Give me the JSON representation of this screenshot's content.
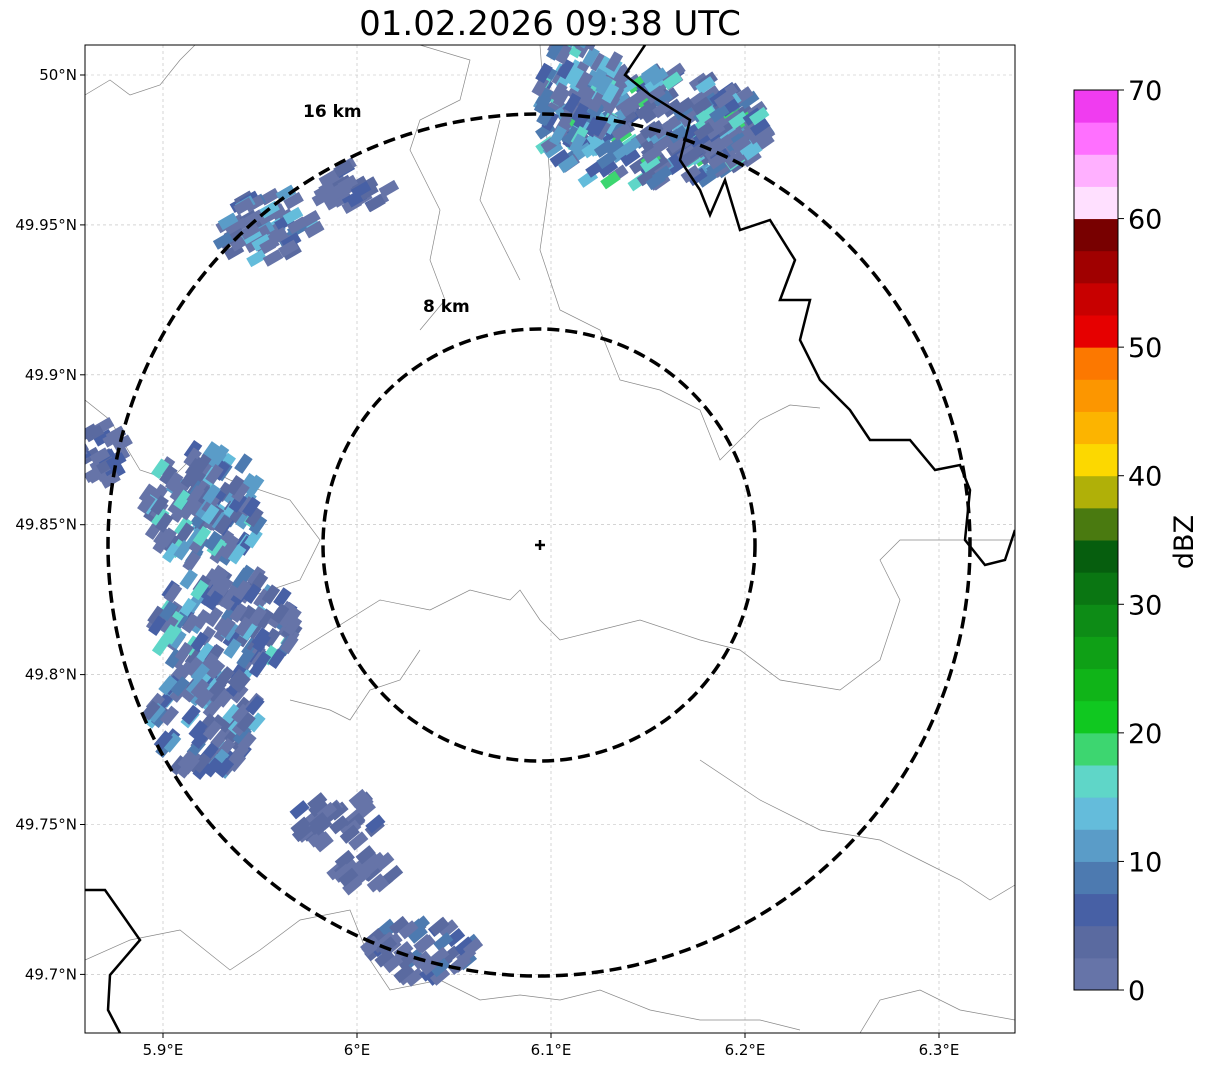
{
  "title": "01.02.2026 09:38 UTC",
  "chart_data": {
    "type": "heatmap",
    "title": "01.02.2026 09:38 UTC",
    "x_ticks": [
      "5.9°E",
      "6°E",
      "6.1°E",
      "6.2°E",
      "6.3°E"
    ],
    "x_tick_values": [
      5.9,
      6.0,
      6.1,
      6.2,
      6.3
    ],
    "y_ticks": [
      "50°N",
      "49.95°N",
      "49.9°N",
      "49.85°N",
      "49.8°N",
      "49.75°N",
      "49.7°N"
    ],
    "y_tick_values": [
      50.0,
      49.95,
      49.9,
      49.85,
      49.8,
      49.75,
      49.7
    ],
    "xlim": [
      5.86,
      6.34
    ],
    "ylim": [
      49.68,
      50.01
    ],
    "grid": true,
    "radar_center": {
      "lon": 6.095,
      "lat": 49.843
    },
    "range_rings": [
      {
        "radius_km": 8,
        "label": "8 km"
      },
      {
        "radius_km": 16,
        "label": "16 km"
      }
    ],
    "colorbar": {
      "label": "dBZ",
      "ticks": [
        "0",
        "10",
        "20",
        "30",
        "40",
        "50",
        "60",
        "70"
      ],
      "range": [
        0,
        70
      ],
      "step": 2.5,
      "colors": [
        "#6674a8",
        "#5a6aa0",
        "#4760a5",
        "#4d7ab0",
        "#5a9cc8",
        "#64bcdb",
        "#5fd6c8",
        "#3dd670",
        "#10c820",
        "#10b418",
        "#0fa016",
        "#0d8c16",
        "#0a7612",
        "#065e0e",
        "#4a7a10",
        "#b0b008",
        "#fcd800",
        "#fcb400",
        "#fc9600",
        "#fc7800",
        "#e60000",
        "#c80000",
        "#a00000",
        "#780000",
        "#ffe0ff",
        "#ffb0ff",
        "#ff70ff",
        "#f03cf0"
      ]
    }
  }
}
